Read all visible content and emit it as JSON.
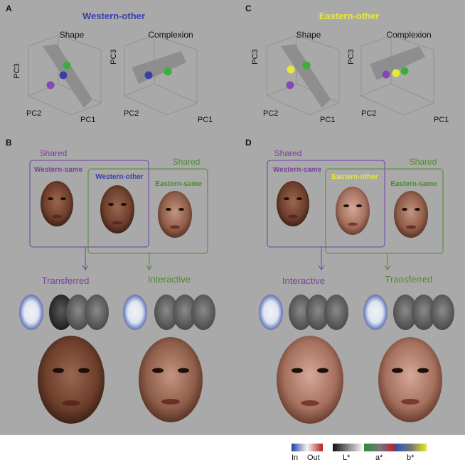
{
  "panels": {
    "A": {
      "letter": "A",
      "title": "Western-other",
      "title_color": "#3a3fa8",
      "sub1": "Shape",
      "sub2": "Complexion"
    },
    "C": {
      "letter": "C",
      "title": "Eastern-other",
      "title_color": "#e8e83a",
      "sub1": "Shape",
      "sub2": "Complexion"
    },
    "B": {
      "letter": "B"
    },
    "D": {
      "letter": "D"
    }
  },
  "axes": {
    "pc1": "PC1",
    "pc2": "PC2",
    "pc3": "PC3"
  },
  "panel_B": {
    "shared_left": "Shared",
    "shared_right": "Shared",
    "face1": "Western-same",
    "face2": "Western-other",
    "face3": "Eastern-same",
    "left_result": "Transferred",
    "right_result": "Interactive"
  },
  "panel_D": {
    "shared_left": "Shared",
    "shared_right": "Shared",
    "face1": "Western-same",
    "face2": "Eastern-other",
    "face3": "Eastern-same",
    "left_result": "Interactive",
    "right_result": "Transferred"
  },
  "legend": {
    "in": "In",
    "out": "Out",
    "l": "L*",
    "a": "a*",
    "b": "b*"
  },
  "colors": {
    "background": "#a9a9a9",
    "purple": "#7a3f9e",
    "green": "#4e8a2e",
    "blue": "#3a3fa8",
    "yellow": "#e8e83a",
    "western_skin": "#7a4a35",
    "eastern_skin": "#9a6a52",
    "western_face_light": "#a87060"
  }
}
